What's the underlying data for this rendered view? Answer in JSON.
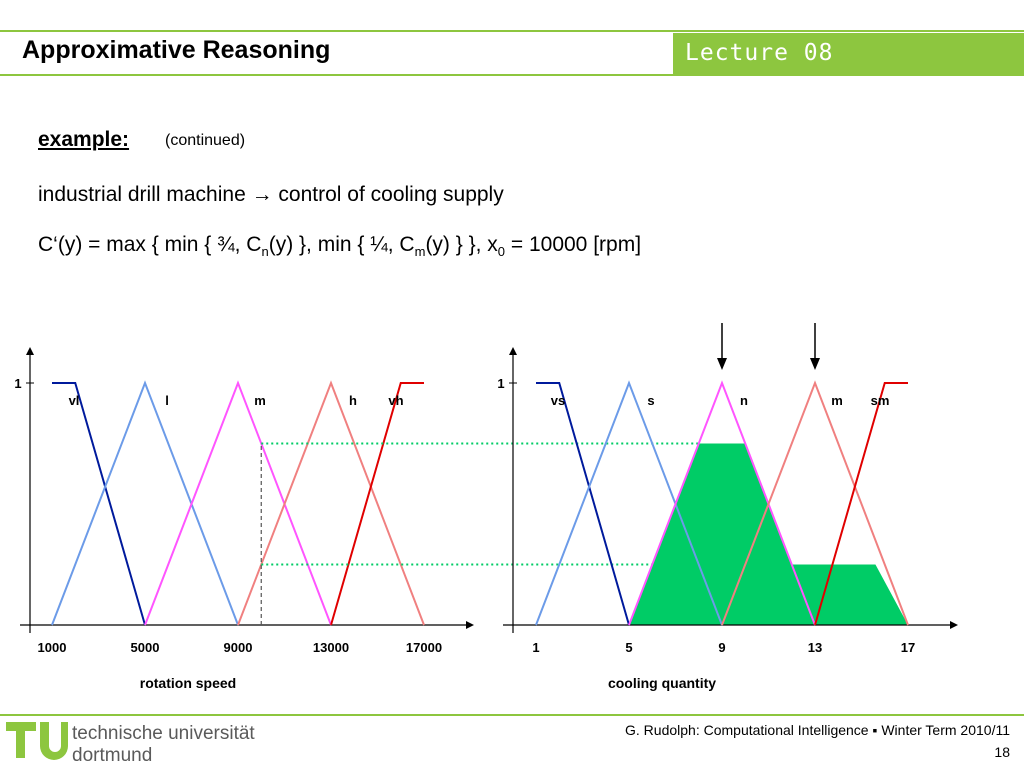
{
  "header": {
    "title": "Approximative Reasoning",
    "lecture": "Lecture 08"
  },
  "content": {
    "example_label": "example:",
    "continued": "(continued)",
    "line1": "industrial drill machine → control of cooling supply",
    "formula": {
      "p1": "C‘(y) = max { min { ¾, C",
      "sub_n": "n",
      "p2": "(y) }, min { ¼, C",
      "sub_m": "m",
      "p3": "(y) } }, x",
      "sub_0": "0",
      "p4": " = 10000 [rpm]"
    }
  },
  "chart_data": [
    {
      "type": "line",
      "title": "",
      "xlabel": "rotation speed",
      "ylabel": "",
      "ylim": [
        0,
        1
      ],
      "y_tick_labels": [
        "1"
      ],
      "x_tick_labels": [
        "1000",
        "5000",
        "9000",
        "13000",
        "17000"
      ],
      "x_ticks": [
        1000,
        5000,
        9000,
        13000,
        17000
      ],
      "xlim": [
        1000,
        17000
      ],
      "series": [
        {
          "name": "vl",
          "color": "#001a9c",
          "x": [
            1000,
            2000,
            5000
          ],
          "y": [
            1,
            1,
            0
          ]
        },
        {
          "name": "l",
          "color": "#6c9be8",
          "x": [
            1000,
            5000,
            9000
          ],
          "y": [
            0,
            1,
            0
          ]
        },
        {
          "name": "m",
          "color": "#ff55ff",
          "x": [
            5000,
            9000,
            13000
          ],
          "y": [
            0,
            1,
            0
          ]
        },
        {
          "name": "h",
          "color": "#f08080",
          "x": [
            9000,
            13000,
            17000
          ],
          "y": [
            0,
            1,
            0
          ]
        },
        {
          "name": "vh",
          "color": "#e00000",
          "x": [
            13000,
            16000,
            17000
          ],
          "y": [
            0,
            1,
            1
          ]
        }
      ],
      "input_marker": {
        "x": 10000,
        "levels": [
          0.75,
          0.25
        ]
      }
    },
    {
      "type": "area",
      "title": "",
      "xlabel": "cooling quantity",
      "ylabel": "",
      "ylim": [
        0,
        1
      ],
      "y_tick_labels": [
        "1"
      ],
      "x_tick_labels": [
        "1",
        "5",
        "9",
        "13",
        "17"
      ],
      "x_ticks": [
        1,
        5,
        9,
        13,
        17
      ],
      "xlim": [
        1,
        17
      ],
      "series": [
        {
          "name": "vs",
          "color": "#001a9c",
          "x": [
            1,
            2,
            5
          ],
          "y": [
            1,
            1,
            0
          ]
        },
        {
          "name": "s",
          "color": "#6c9be8",
          "x": [
            1,
            5,
            9
          ],
          "y": [
            0,
            1,
            0
          ]
        },
        {
          "name": "n",
          "color": "#ff55ff",
          "x": [
            5,
            9,
            13
          ],
          "y": [
            0,
            1,
            0
          ]
        },
        {
          "name": "m",
          "color": "#f08080",
          "x": [
            9,
            13,
            17
          ],
          "y": [
            0,
            1,
            0
          ]
        },
        {
          "name": "sm",
          "color": "#e00000",
          "x": [
            13,
            16,
            17
          ],
          "y": [
            0,
            1,
            1
          ]
        }
      ],
      "result_area": {
        "color": "#00cc66",
        "x": [
          5,
          8,
          10,
          12,
          15.6,
          17
        ],
        "y": [
          0,
          0.75,
          0.75,
          0.25,
          0.25,
          0
        ]
      },
      "arrows_at": [
        9,
        13
      ]
    }
  ],
  "footer": {
    "uni_line1": "technische universität",
    "uni_line2": "dortmund",
    "credit": "G. Rudolph: Computational Intelligence ▪ Winter Term 2010/11",
    "page": "18"
  },
  "colors": {
    "accent": "#8dc63f",
    "dotted_line": "#00cc66"
  }
}
